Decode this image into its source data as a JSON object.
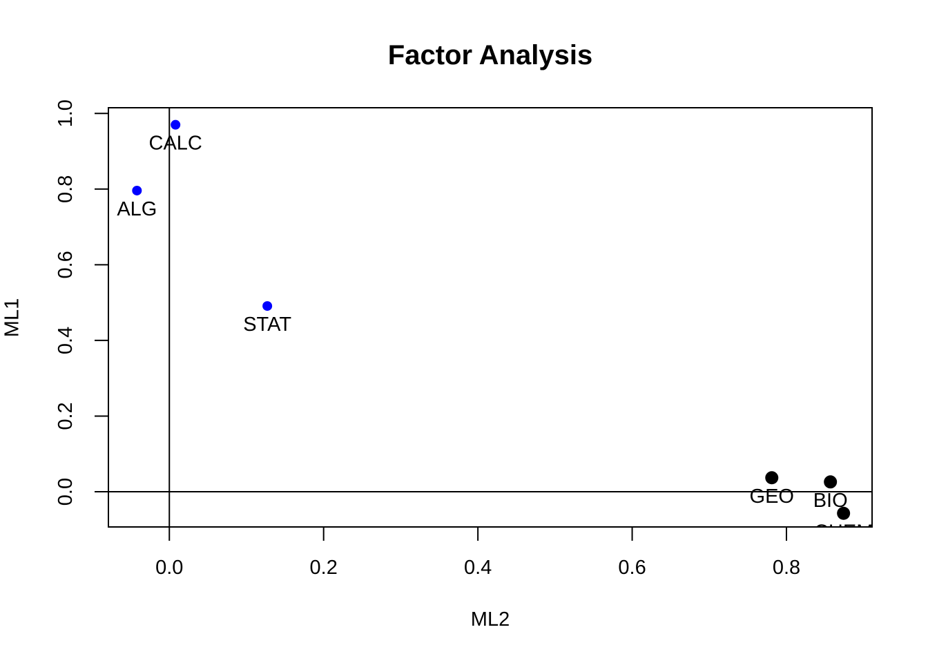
{
  "chart_data": {
    "type": "scatter",
    "title": "Factor Analysis",
    "xlabel": "ML2",
    "ylabel": "ML1",
    "xlim": [
      -0.079,
      0.911
    ],
    "ylim": [
      -0.093,
      1.015
    ],
    "x_tick_values": [
      0.0,
      0.2,
      0.4,
      0.6,
      0.8
    ],
    "x_tick_labels": [
      "0.0",
      "0.2",
      "0.4",
      "0.6",
      "0.8"
    ],
    "y_tick_values": [
      0.0,
      0.2,
      0.4,
      0.6,
      0.8,
      1.0
    ],
    "y_tick_labels": [
      "0.0",
      "0.2",
      "0.4",
      "0.6",
      "0.8",
      "1.0"
    ],
    "grid": false,
    "legend": null,
    "reference_lines": {
      "horizontal_at": 0.0,
      "vertical_at": 0.0
    },
    "axis_color": "#000000",
    "background_color": "#FFFFFF",
    "series": [
      {
        "name": "blue-factor-points",
        "color": "#0000FF",
        "marker": "filled-circle",
        "marker_radius_px": 7,
        "points": [
          {
            "label": "CALC",
            "x": 0.008,
            "y": 0.97
          },
          {
            "label": "ALG",
            "x": -0.042,
            "y": 0.796
          },
          {
            "label": "STAT",
            "x": 0.127,
            "y": 0.491
          }
        ]
      },
      {
        "name": "black-factor-points",
        "color": "#000000",
        "marker": "filled-circle",
        "marker_radius_px": 9.5,
        "points": [
          {
            "label": "GEO",
            "x": 0.781,
            "y": 0.037
          },
          {
            "label": "BIO",
            "x": 0.857,
            "y": 0.026
          },
          {
            "label": "CHEM",
            "x": 0.874,
            "y": -0.057
          }
        ]
      }
    ]
  }
}
